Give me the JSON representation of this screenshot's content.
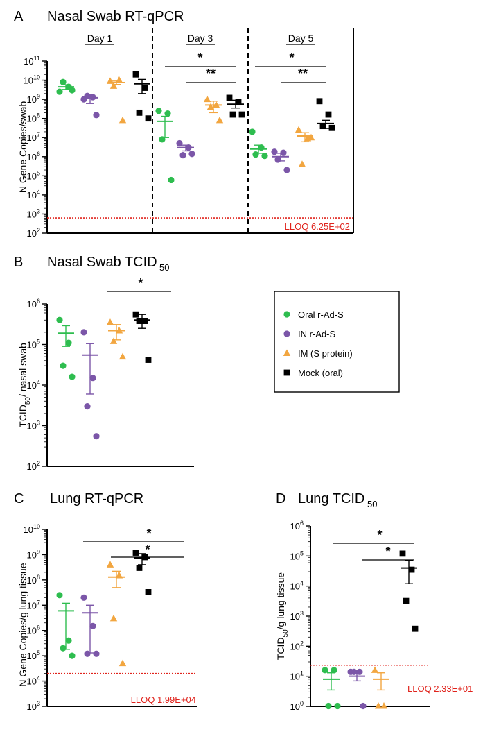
{
  "colors": {
    "oral": "#2ebd4f",
    "in": "#7b56a8",
    "im": "#f2a640",
    "mock": "#000000",
    "lloq": "#e0231c"
  },
  "legend": [
    {
      "key": "oral",
      "label": "Oral r-Ad-S",
      "marker": "circle"
    },
    {
      "key": "in",
      "label": "IN r-Ad-S",
      "marker": "circle"
    },
    {
      "key": "im",
      "label": "IM (S protein)",
      "marker": "triangle"
    },
    {
      "key": "mock",
      "label": "Mock (oral)",
      "marker": "square"
    }
  ],
  "chart_data": [
    {
      "id": "A",
      "type": "scatter",
      "letter": "A",
      "title": "Nasal Swab RT-qPCR",
      "ylabel": "N Gene Copies/swab",
      "yscale": "log",
      "ylim_exp": [
        2,
        11
      ],
      "ytick_exps": [
        2,
        3,
        4,
        5,
        6,
        7,
        8,
        9,
        10,
        11
      ],
      "groups": [
        "Day 1",
        "Day 3",
        "Day 5"
      ],
      "lloq": {
        "value": 625,
        "label": "LLOQ 6.25E+02"
      },
      "series": [
        {
          "key": "oral",
          "group": "Day 1",
          "points": [
            2500000000.0,
            4500000000.0,
            8000000000.0,
            3000000000.0
          ],
          "mean": 4500000000.0,
          "sem": [
            3300000000.0,
            5800000000.0
          ]
        },
        {
          "key": "in",
          "group": "Day 1",
          "points": [
            1000000000.0,
            1300000000.0,
            1500000000.0,
            150000000.0
          ],
          "mean": 1200000000.0,
          "sem": [
            600000000.0,
            1800000000.0
          ]
        },
        {
          "key": "im",
          "group": "Day 1",
          "points": [
            9000000000.0,
            10000000000.0,
            5000000000.0,
            80000000.0
          ],
          "mean": 7500000000.0,
          "sem": [
            6000000000.0,
            9000000000.0
          ]
        },
        {
          "key": "mock",
          "group": "Day 1",
          "points": [
            20000000000.0,
            4000000000.0,
            200000000.0,
            100000000.0
          ],
          "mean": 6500000000.0,
          "sem": [
            2000000000.0,
            11000000000.0
          ]
        },
        {
          "key": "oral",
          "group": "Day 3",
          "points": [
            250000000.0,
            180000000.0,
            8000000.0,
            60000.0
          ],
          "mean": 70000000.0,
          "sem": [
            10000000.0,
            130000000.0
          ]
        },
        {
          "key": "in",
          "group": "Day 3",
          "points": [
            5000000.0,
            3000000.0,
            1200000.0,
            1400000.0
          ],
          "mean": 3000000.0,
          "sem": [
            2000000.0,
            4000000.0
          ]
        },
        {
          "key": "im",
          "group": "Day 3",
          "points": [
            1000000000.0,
            500000000.0,
            400000000.0,
            80000000.0
          ],
          "mean": 500000000.0,
          "sem": [
            200000000.0,
            800000000.0
          ]
        },
        {
          "key": "mock",
          "group": "Day 3",
          "points": [
            1200000000.0,
            700000000.0,
            160000000.0,
            160000000.0
          ],
          "mean": 550000000.0,
          "sem": [
            350000000.0,
            900000000.0
          ]
        },
        {
          "key": "oral",
          "group": "Day 5",
          "points": [
            20000000.0,
            3000000.0,
            1300000.0,
            1100000.0
          ],
          "mean": 2500000.0,
          "sem": [
            1500000.0,
            4000000.0
          ]
        },
        {
          "key": "in",
          "group": "Day 5",
          "points": [
            1800000.0,
            1600000.0,
            700000.0,
            200000.0
          ],
          "mean": 1000000.0,
          "sem": [
            600000.0,
            1500000.0
          ]
        },
        {
          "key": "im",
          "group": "Day 5",
          "points": [
            25000000.0,
            9000000.0,
            400000.0,
            10000000.0
          ],
          "mean": 12000000.0,
          "sem": [
            6000000.0,
            18000000.0
          ]
        },
        {
          "key": "mock",
          "group": "Day 5",
          "points": [
            800000000.0,
            160000000.0,
            40000000.0,
            32000000.0
          ],
          "mean": 55000000.0,
          "sem": [
            30000000.0,
            80000000.0
          ]
        }
      ],
      "significance": [
        {
          "group": "Day 3",
          "from": "oral",
          "to": "mock",
          "label": "*"
        },
        {
          "group": "Day 3",
          "from": "in",
          "to": "mock",
          "label": "**"
        },
        {
          "group": "Day 5",
          "from": "oral",
          "to": "mock",
          "label": "*"
        },
        {
          "group": "Day 5",
          "from": "in",
          "to": "mock",
          "label": "**"
        }
      ]
    },
    {
      "id": "B",
      "type": "scatter",
      "letter": "B",
      "title": "Nasal Swab TCID",
      "title_sub": "50",
      "ylabel": "TCID",
      "ylabel_sub": "50",
      "ylabel_rest": "/ nasal swab",
      "yscale": "log",
      "ylim_exp": [
        2,
        6
      ],
      "ytick_exps": [
        2,
        3,
        4,
        5,
        6
      ],
      "series": [
        {
          "key": "oral",
          "points": [
            400000.0,
            110000.0,
            30000.0,
            16000.0
          ],
          "mean": 190000.0,
          "sem": [
            90000.0,
            290000.0
          ]
        },
        {
          "key": "in",
          "points": [
            200000.0,
            15000.0,
            3000.0,
            550.0
          ],
          "mean": 55000.0,
          "sem": [
            6000.0,
            105000.0
          ]
        },
        {
          "key": "im",
          "points": [
            350000.0,
            220000.0,
            120000.0,
            50000.0
          ],
          "mean": 220000.0,
          "sem": [
            130000.0,
            310000.0
          ]
        },
        {
          "key": "mock",
          "points": [
            550000.0,
            380000.0,
            380000.0,
            42000.0
          ],
          "mean": 400000.0,
          "sem": [
            250000.0,
            550000.0
          ]
        }
      ],
      "significance": [
        {
          "from": "in",
          "to": "mock",
          "label": "*"
        }
      ]
    },
    {
      "id": "C",
      "type": "scatter",
      "letter": "C",
      "title": "Lung RT-qPCR",
      "ylabel": "N Gene Copies/g lung tissue",
      "yscale": "log",
      "ylim_exp": [
        3,
        10
      ],
      "ytick_exps": [
        3,
        4,
        5,
        6,
        7,
        8,
        9,
        10
      ],
      "lloq": {
        "value": 19900,
        "label": "LLOQ 1.99E+04"
      },
      "series": [
        {
          "key": "oral",
          "points": [
            25000000.0,
            400000.0,
            200000.0,
            100000.0
          ],
          "mean": 6000000.0,
          "sem": [
            180000.0,
            12000000.0
          ]
        },
        {
          "key": "in",
          "points": [
            20000000.0,
            1500000.0,
            120000.0,
            120000.0
          ],
          "mean": 5000000.0,
          "sem": [
            130000.0,
            10000000.0
          ]
        },
        {
          "key": "im",
          "points": [
            400000000.0,
            150000000.0,
            3000000.0,
            50000.0
          ],
          "mean": 130000000.0,
          "sem": [
            50000000.0,
            220000000.0
          ]
        },
        {
          "key": "mock",
          "points": [
            1200000000.0,
            800000000.0,
            300000000.0,
            33000000.0
          ],
          "mean": 750000000.0,
          "sem": [
            400000000.0,
            1100000000.0
          ]
        }
      ],
      "significance": [
        {
          "from": "oral",
          "to": "mock",
          "label": "*"
        },
        {
          "from": "in",
          "to": "mock",
          "label": "*"
        }
      ]
    },
    {
      "id": "D",
      "type": "scatter",
      "letter": "D",
      "title": "Lung TCID",
      "title_sub": "50",
      "ylabel": "TCID",
      "ylabel_sub": "50",
      "ylabel_rest": "/g lung tissue",
      "yscale": "log",
      "ylim_exp": [
        0,
        6
      ],
      "ytick_exps": [
        0,
        1,
        2,
        3,
        4,
        5,
        6
      ],
      "lloq": {
        "value": 23.3,
        "label": "LLOQ 2.33E+01"
      },
      "series": [
        {
          "key": "oral",
          "points": [
            16,
            16,
            1,
            1
          ],
          "mean": 8,
          "sem": [
            3.5,
            13
          ]
        },
        {
          "key": "in",
          "points": [
            14,
            14,
            14,
            1
          ],
          "mean": 10,
          "sem": [
            7,
            13
          ]
        },
        {
          "key": "im",
          "points": [
            16,
            1,
            1
          ],
          "mean": 8,
          "sem": [
            3.5,
            13
          ]
        },
        {
          "key": "mock",
          "points": [
            120000.0,
            35000.0,
            3200.0,
            380.0
          ],
          "mean": 40000.0,
          "sem": [
            12000.0,
            70000.0
          ]
        }
      ],
      "significance": [
        {
          "from": "oral",
          "to": "mock",
          "label": "*"
        },
        {
          "from": "in",
          "to": "mock",
          "label": "*"
        }
      ]
    }
  ]
}
